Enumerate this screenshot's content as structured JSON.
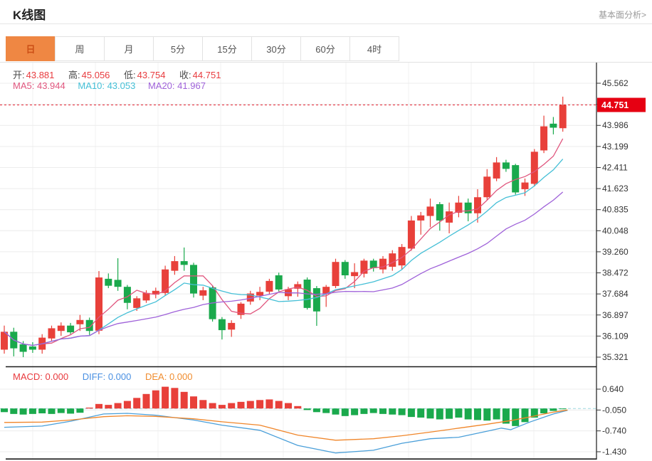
{
  "header": {
    "title": "K线图",
    "link": "基本面分析>"
  },
  "tabs": {
    "items": [
      {
        "label": "日",
        "active": true
      },
      {
        "label": "周",
        "active": false
      },
      {
        "label": "月",
        "active": false
      },
      {
        "label": "5分",
        "active": false
      },
      {
        "label": "15分",
        "active": false
      },
      {
        "label": "30分",
        "active": false
      },
      {
        "label": "60分",
        "active": false
      },
      {
        "label": "4时",
        "active": false
      }
    ]
  },
  "info": {
    "open_label": "开:",
    "open": "43.881",
    "high_label": "高:",
    "high": "45.056",
    "low_label": "低:",
    "low": "43.754",
    "close_label": "收:",
    "close": "44.751"
  },
  "ma_info": {
    "ma5_label": "MA5:",
    "ma5": "43.944",
    "ma10_label": "MA10:",
    "ma10": "43.053",
    "ma20_label": "MA20:",
    "ma20": "41.967"
  },
  "macd_info": {
    "macd_label": "MACD:",
    "macd": "0.000",
    "diff_label": "DIFF:",
    "diff": "0.000",
    "dea_label": "DEA:",
    "dea": "0.000"
  },
  "colors": {
    "up": "#e8403a",
    "down": "#1aa94c",
    "ma5": "#e0567e",
    "ma10": "#44bfd6",
    "ma20": "#9f62d9",
    "diff": "#4a9fd9",
    "dea": "#f0862a",
    "accent": "#ef8743",
    "price_tag": "#e60012",
    "grid": "#ececec",
    "vgrid": "#f2f2f2",
    "axis": "#1a1a1a",
    "axis_text": "#333333"
  },
  "chart_data": {
    "type": "candlestick",
    "title": "K线图",
    "period": "日",
    "legend": [
      "MA5",
      "MA10",
      "MA20"
    ],
    "ohlc": {
      "open": 43.881,
      "high": 45.056,
      "low": 43.754,
      "close": 44.751
    },
    "ma_values": {
      "ma5": 43.944,
      "ma10": 43.053,
      "ma20": 41.967
    },
    "current_price": 44.751,
    "current_price_label": "44.751",
    "y_axis": {
      "tick_prices": [
        45.562,
        44.774,
        43.986,
        43.199,
        42.411,
        41.623,
        40.835,
        40.048,
        39.26,
        38.472,
        37.684,
        36.897,
        36.109,
        35.321
      ],
      "tick_labels": [
        "45.562",
        "",
        "43.986",
        "43.199",
        "42.411",
        "41.623",
        "40.835",
        "40.048",
        "39.260",
        "38.472",
        "37.684",
        "36.897",
        "36.109",
        "35.321"
      ]
    },
    "candles": [
      [
        35.6,
        36.5,
        35.45,
        36.27
      ],
      [
        36.27,
        36.42,
        35.35,
        35.65
      ],
      [
        35.8,
        35.92,
        35.32,
        35.52
      ],
      [
        35.72,
        35.88,
        35.48,
        35.6
      ],
      [
        35.6,
        36.18,
        35.45,
        36.05
      ],
      [
        36.02,
        36.5,
        35.92,
        36.4
      ],
      [
        36.3,
        36.62,
        36.12,
        36.5
      ],
      [
        36.5,
        36.6,
        36.18,
        36.25
      ],
      [
        36.55,
        36.9,
        36.3,
        36.71
      ],
      [
        36.71,
        36.8,
        36.15,
        36.3
      ],
      [
        36.31,
        38.54,
        36.18,
        38.3
      ],
      [
        38.25,
        38.45,
        37.9,
        37.99
      ],
      [
        38.21,
        39.02,
        37.8,
        37.95
      ],
      [
        37.95,
        38.02,
        37.11,
        37.35
      ],
      [
        37.16,
        37.6,
        37.05,
        37.52
      ],
      [
        37.44,
        37.82,
        37.35,
        37.72
      ],
      [
        37.66,
        37.92,
        37.52,
        37.8
      ],
      [
        37.72,
        38.74,
        37.62,
        38.6
      ],
      [
        38.55,
        39.1,
        38.4,
        38.91
      ],
      [
        38.91,
        39.42,
        38.55,
        38.77
      ],
      [
        38.77,
        38.85,
        37.55,
        37.7
      ],
      [
        37.62,
        37.95,
        37.45,
        37.82
      ],
      [
        37.93,
        38.0,
        36.65,
        36.74
      ],
      [
        36.74,
        36.82,
        35.98,
        36.33
      ],
      [
        36.35,
        36.7,
        36.08,
        36.6
      ],
      [
        36.9,
        37.38,
        36.75,
        37.32
      ],
      [
        37.4,
        37.8,
        37.28,
        37.7
      ],
      [
        37.62,
        37.95,
        37.45,
        37.76
      ],
      [
        37.77,
        38.25,
        37.68,
        38.17
      ],
      [
        38.38,
        38.48,
        37.78,
        37.85
      ],
      [
        37.6,
        37.95,
        37.45,
        37.86
      ],
      [
        37.88,
        38.15,
        37.58,
        38.05
      ],
      [
        38.22,
        38.3,
        37.1,
        37.16
      ],
      [
        37.9,
        37.98,
        36.49,
        37.03
      ],
      [
        37.68,
        38.02,
        37.2,
        37.95
      ],
      [
        37.98,
        39.0,
        37.9,
        38.88
      ],
      [
        38.88,
        38.95,
        38.25,
        38.38
      ],
      [
        38.35,
        38.83,
        37.9,
        38.5
      ],
      [
        38.44,
        39.0,
        38.3,
        38.93
      ],
      [
        38.93,
        39.0,
        38.52,
        38.65
      ],
      [
        38.6,
        39.1,
        38.45,
        39.0
      ],
      [
        38.7,
        39.32,
        38.55,
        39.2
      ],
      [
        38.75,
        39.55,
        38.6,
        39.44
      ],
      [
        39.38,
        40.6,
        39.3,
        40.43
      ],
      [
        40.43,
        40.75,
        39.9,
        40.62
      ],
      [
        40.6,
        41.25,
        40.18,
        40.95
      ],
      [
        41.04,
        41.12,
        40.05,
        40.43
      ],
      [
        40.35,
        41.1,
        39.95,
        40.77
      ],
      [
        40.72,
        41.35,
        40.55,
        41.1
      ],
      [
        41.1,
        41.25,
        40.4,
        40.7
      ],
      [
        40.7,
        41.6,
        40.35,
        41.3
      ],
      [
        41.3,
        42.35,
        41.2,
        42.07
      ],
      [
        42.0,
        42.8,
        41.9,
        42.6
      ],
      [
        42.6,
        42.7,
        42.25,
        42.36
      ],
      [
        42.5,
        42.55,
        41.4,
        41.48
      ],
      [
        41.6,
        42.0,
        41.35,
        41.85
      ],
      [
        41.8,
        43.1,
        41.7,
        43.0
      ],
      [
        43.05,
        44.35,
        42.95,
        43.95
      ],
      [
        44.05,
        44.3,
        43.65,
        43.9
      ],
      [
        43.88,
        45.06,
        43.75,
        44.75
      ]
    ],
    "macd": {
      "tick_values": [
        0.64,
        -0.05,
        -0.74,
        -1.43
      ],
      "tick_labels": [
        "0.640",
        "-0.050",
        "-0.740",
        "-1.430"
      ],
      "histogram": [
        -0.12,
        -0.18,
        -0.2,
        -0.18,
        -0.16,
        -0.18,
        -0.15,
        -0.17,
        -0.14,
        0.03,
        0.15,
        0.12,
        0.18,
        0.25,
        0.35,
        0.48,
        0.6,
        0.72,
        0.68,
        0.55,
        0.4,
        0.28,
        0.18,
        0.12,
        0.18,
        0.22,
        0.25,
        0.28,
        0.3,
        0.25,
        0.18,
        0.08,
        -0.05,
        -0.12,
        -0.15,
        -0.2,
        -0.25,
        -0.22,
        -0.18,
        -0.15,
        -0.18,
        -0.2,
        -0.22,
        -0.28,
        -0.3,
        -0.33,
        -0.36,
        -0.34,
        -0.3,
        -0.36,
        -0.38,
        -0.4,
        -0.36,
        -0.5,
        -0.58,
        -0.45,
        -0.3,
        -0.16,
        -0.08,
        -0.02
      ],
      "diff_line": [
        [
          0,
          -0.62
        ],
        [
          4,
          -0.58
        ],
        [
          7,
          -0.42
        ],
        [
          10.5,
          -0.18
        ],
        [
          13,
          -0.16
        ],
        [
          16,
          -0.22
        ],
        [
          20,
          -0.38
        ],
        [
          23,
          -0.55
        ],
        [
          27,
          -0.72
        ],
        [
          31,
          -1.22
        ],
        [
          35,
          -1.47
        ],
        [
          39,
          -1.38
        ],
        [
          42,
          -1.15
        ],
        [
          45,
          -1.0
        ],
        [
          48,
          -0.95
        ],
        [
          51,
          -0.75
        ],
        [
          52.5,
          -0.65
        ],
        [
          53.5,
          -0.7
        ],
        [
          55.5,
          -0.45
        ],
        [
          58,
          -0.18
        ],
        [
          59.5,
          -0.06
        ]
      ],
      "dea_line": [
        [
          0,
          -0.46
        ],
        [
          4,
          -0.45
        ],
        [
          7,
          -0.38
        ],
        [
          10.5,
          -0.27
        ],
        [
          13,
          -0.24
        ],
        [
          16,
          -0.26
        ],
        [
          20,
          -0.34
        ],
        [
          23,
          -0.44
        ],
        [
          27,
          -0.55
        ],
        [
          31,
          -0.88
        ],
        [
          35,
          -1.05
        ],
        [
          39,
          -1.0
        ],
        [
          42,
          -0.9
        ],
        [
          45,
          -0.78
        ],
        [
          48,
          -0.65
        ],
        [
          51,
          -0.52
        ],
        [
          53.5,
          -0.4
        ],
        [
          55.5,
          -0.28
        ],
        [
          58,
          -0.12
        ],
        [
          59.5,
          -0.05
        ]
      ]
    }
  }
}
